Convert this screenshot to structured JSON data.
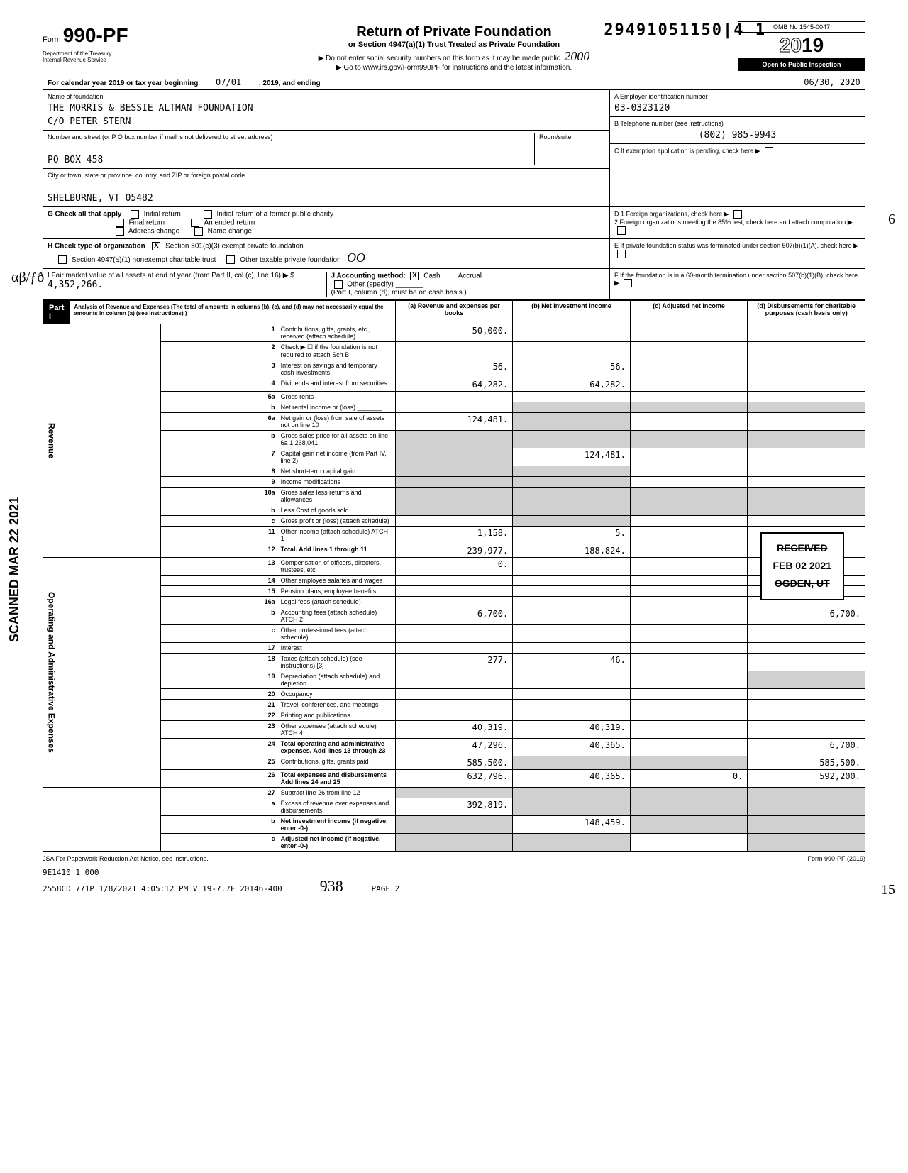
{
  "top_code": "29491051150|4 1",
  "form": {
    "prefix": "Form",
    "number": "990-PF",
    "dept1": "Department of the Treasury",
    "dept2": "Internal Revenue Service"
  },
  "title": {
    "main": "Return of Private Foundation",
    "sub": "or Section 4947(a)(1) Trust Treated as Private Foundation",
    "line1": "▶ Do not enter social security numbers on this form as it may be made public.",
    "line2": "▶ Go to www.irs.gov/Form990PF for instructions and the latest information."
  },
  "omb": {
    "number": "OMB No 1545-0047",
    "year_prefix": "20",
    "year_suffix": "19",
    "inspect": "Open to Public Inspection"
  },
  "cal_year": {
    "label_a": "For calendar year 2019 or tax year beginning",
    "begin": "07/01",
    "mid": ", 2019, and ending",
    "end": "06/30",
    "endyear": ", 2020"
  },
  "foundation": {
    "name_label": "Name of foundation",
    "name": "THE MORRIS & BESSIE ALTMAN FOUNDATION",
    "co": "C/O PETER STERN",
    "street_label": "Number and street (or P O box number if mail is not delivered to street address)",
    "room_label": "Room/suite",
    "street": "PO BOX 458",
    "city_label": "City or town, state or province, country, and ZIP or foreign postal code",
    "city": "SHELBURNE, VT 05482"
  },
  "right_box": {
    "a_label": "A Employer identification number",
    "a_value": "03-0323120",
    "b_label": "B Telephone number (see instructions)",
    "b_value": "(802) 985-9943",
    "c_label": "C If exemption application is pending, check here",
    "d1_label": "D 1 Foreign organizations, check here",
    "d2_label": "2 Foreign organizations meeting the 85% test, check here and attach computation",
    "e_label": "E If private foundation status was terminated under section 507(b)(1)(A), check here",
    "f_label": "F If the foundation is in a 60-month termination under section 507(b)(1)(B), check here"
  },
  "g": {
    "label": "G Check all that apply",
    "opts": [
      "Initial return",
      "Final return",
      "Address change",
      "Initial return of a former public charity",
      "Amended return",
      "Name change"
    ]
  },
  "h": {
    "label": "H Check type of organization",
    "opt1": "Section 501(c)(3) exempt private foundation",
    "opt2": "Section 4947(a)(1) nonexempt charitable trust",
    "opt3": "Other taxable private foundation"
  },
  "i": {
    "label": "I Fair market value of all assets at end of year (from Part II, col (c), line 16) ▶ $",
    "value": "4,352,266."
  },
  "j": {
    "label": "J Accounting method:",
    "cash": "Cash",
    "accrual": "Accrual",
    "other": "Other (specify)",
    "note": "(Part I, column (d), must be on cash basis )"
  },
  "part1": {
    "label": "Part I",
    "title": "Analysis of Revenue and Expenses (The total of amounts in columns (b), (c), and (d) may not necessarily equal the amounts in column (a) (see instructions) )",
    "col_a": "(a) Revenue and expenses per books",
    "col_b": "(b) Net investment income",
    "col_c": "(c) Adjusted net income",
    "col_d": "(d) Disbursements for charitable purposes (cash basis only)"
  },
  "rows": [
    {
      "n": "1",
      "label": "Contributions, gifts, grants, etc , received (attach schedule)",
      "a": "50,000.",
      "b": "",
      "c": "",
      "d": ""
    },
    {
      "n": "2",
      "label": "Check ▶ ☐ if the foundation is not required to attach Sch B",
      "a": "",
      "b": "",
      "c": "",
      "d": ""
    },
    {
      "n": "3",
      "label": "Interest on savings and temporary cash investments",
      "a": "56.",
      "b": "56.",
      "c": "",
      "d": ""
    },
    {
      "n": "4",
      "label": "Dividends and interest from securities",
      "a": "64,282.",
      "b": "64,282.",
      "c": "",
      "d": ""
    },
    {
      "n": "5a",
      "label": "Gross rents",
      "a": "",
      "b": "",
      "c": "",
      "d": ""
    },
    {
      "n": "b",
      "label": "Net rental income or (loss) _______",
      "a": "",
      "b": "",
      "c": "",
      "d": "",
      "shadeBCD": true
    },
    {
      "n": "6a",
      "label": "Net gain or (loss) from sale of assets not on line 10",
      "a": "124,481.",
      "b": "",
      "c": "",
      "d": "",
      "shadeB": true
    },
    {
      "n": "b",
      "label": "Gross sales price for all assets on line 6a    1,268,041.",
      "a": "",
      "b": "",
      "c": "",
      "d": "",
      "shadeABCD": true
    },
    {
      "n": "7",
      "label": "Capital gain net income (from Part IV, line 2)",
      "a": "",
      "b": "124,481.",
      "c": "",
      "d": "",
      "shadeA": true
    },
    {
      "n": "8",
      "label": "Net short-term capital gain",
      "a": "",
      "b": "",
      "c": "",
      "d": "",
      "shadeAB": true
    },
    {
      "n": "9",
      "label": "Income modifications",
      "a": "",
      "b": "",
      "c": "",
      "d": "",
      "shadeAB": true
    },
    {
      "n": "10a",
      "label": "Gross sales less returns and allowances",
      "a": "",
      "b": "",
      "c": "",
      "d": "",
      "shadeABCD": true
    },
    {
      "n": "b",
      "label": "Less Cost of goods sold",
      "a": "",
      "b": "",
      "c": "",
      "d": "",
      "shadeABCD": true
    },
    {
      "n": "c",
      "label": "Gross profit or (loss) (attach schedule)",
      "a": "",
      "b": "",
      "c": "",
      "d": "",
      "shadeB": true
    },
    {
      "n": "11",
      "label": "Other income (attach schedule) ATCH 1",
      "a": "1,158.",
      "b": "5.",
      "c": "",
      "d": ""
    },
    {
      "n": "12",
      "label": "Total. Add lines 1 through 11",
      "a": "239,977.",
      "b": "188,824.",
      "c": "",
      "d": "",
      "bold": true
    }
  ],
  "exp_rows": [
    {
      "n": "13",
      "label": "Compensation of officers, directors, trustees, etc",
      "a": "0.",
      "b": "",
      "c": "",
      "d": ""
    },
    {
      "n": "14",
      "label": "Other employee salaries and wages",
      "a": "",
      "b": "",
      "c": "",
      "d": ""
    },
    {
      "n": "15",
      "label": "Pension plans, employee benefits",
      "a": "",
      "b": "",
      "c": "",
      "d": ""
    },
    {
      "n": "16a",
      "label": "Legal fees (attach schedule)",
      "a": "",
      "b": "",
      "c": "",
      "d": ""
    },
    {
      "n": "b",
      "label": "Accounting fees (attach schedule) ATCH 2",
      "a": "6,700.",
      "b": "",
      "c": "",
      "d": "6,700."
    },
    {
      "n": "c",
      "label": "Other professional fees (attach schedule)",
      "a": "",
      "b": "",
      "c": "",
      "d": ""
    },
    {
      "n": "17",
      "label": "Interest",
      "a": "",
      "b": "",
      "c": "",
      "d": ""
    },
    {
      "n": "18",
      "label": "Taxes (attach schedule) (see instructions) [3]",
      "a": "277.",
      "b": "46.",
      "c": "",
      "d": ""
    },
    {
      "n": "19",
      "label": "Depreciation (attach schedule) and depletion",
      "a": "",
      "b": "",
      "c": "",
      "d": "",
      "shadeD": true
    },
    {
      "n": "20",
      "label": "Occupancy",
      "a": "",
      "b": "",
      "c": "",
      "d": ""
    },
    {
      "n": "21",
      "label": "Travel, conferences, and meetings",
      "a": "",
      "b": "",
      "c": "",
      "d": ""
    },
    {
      "n": "22",
      "label": "Printing and publications",
      "a": "",
      "b": "",
      "c": "",
      "d": ""
    },
    {
      "n": "23",
      "label": "Other expenses (attach schedule) ATCH 4",
      "a": "40,319.",
      "b": "40,319.",
      "c": "",
      "d": ""
    },
    {
      "n": "24",
      "label": "Total operating and administrative expenses. Add lines 13 through 23",
      "a": "47,296.",
      "b": "40,365.",
      "c": "",
      "d": "6,700.",
      "bold": true
    },
    {
      "n": "25",
      "label": "Contributions, gifts, grants paid",
      "a": "585,500.",
      "b": "",
      "c": "",
      "d": "585,500.",
      "shadeBC": true
    },
    {
      "n": "26",
      "label": "Total expenses and disbursements Add lines 24 and 25",
      "a": "632,796.",
      "b": "40,365.",
      "c": "0.",
      "d": "592,200.",
      "bold": true
    }
  ],
  "bottom_rows": [
    {
      "n": "27",
      "label": "Subtract line 26 from line 12",
      "a": "",
      "b": "",
      "c": "",
      "d": "",
      "shadeABCD": true
    },
    {
      "n": "a",
      "label": "Excess of revenue over expenses and disbursements",
      "a": "-392,819.",
      "b": "",
      "c": "",
      "d": "",
      "shadeBCD": true
    },
    {
      "n": "b",
      "label": "Net investment income (if negative, enter -0-)",
      "a": "",
      "b": "148,459.",
      "c": "",
      "d": "",
      "shadeACD": true,
      "bold": true
    },
    {
      "n": "c",
      "label": "Adjusted net income (if negative, enter -0-)",
      "a": "",
      "b": "",
      "c": "",
      "d": "",
      "shadeABD": true,
      "bold": true
    }
  ],
  "side_labels": {
    "revenue": "Revenue",
    "expenses": "Operating and Administrative Expenses"
  },
  "stamps": {
    "received": "RECEIVED",
    "date": "FEB 02 2021",
    "ogden": "OGDEN, UT",
    "scanned": "SCANNED MAR 22 2021"
  },
  "footer": {
    "jsa": "JSA For Paperwork Reduction Act Notice, see instructions.",
    "form_ref": "Form 990-PF (2019)",
    "line2": "9E1410 1 000",
    "line3": "2558CD 771P 1/8/2021    4:05:12 PM   V 19-7.7F            20146-400",
    "sig": "938",
    "page": "PAGE 2"
  },
  "margin": {
    "six": "6",
    "fifteen": "15",
    "ab_fd": "αβ/ƒð"
  },
  "hand_2000": "2000",
  "hand_OO": "OO"
}
